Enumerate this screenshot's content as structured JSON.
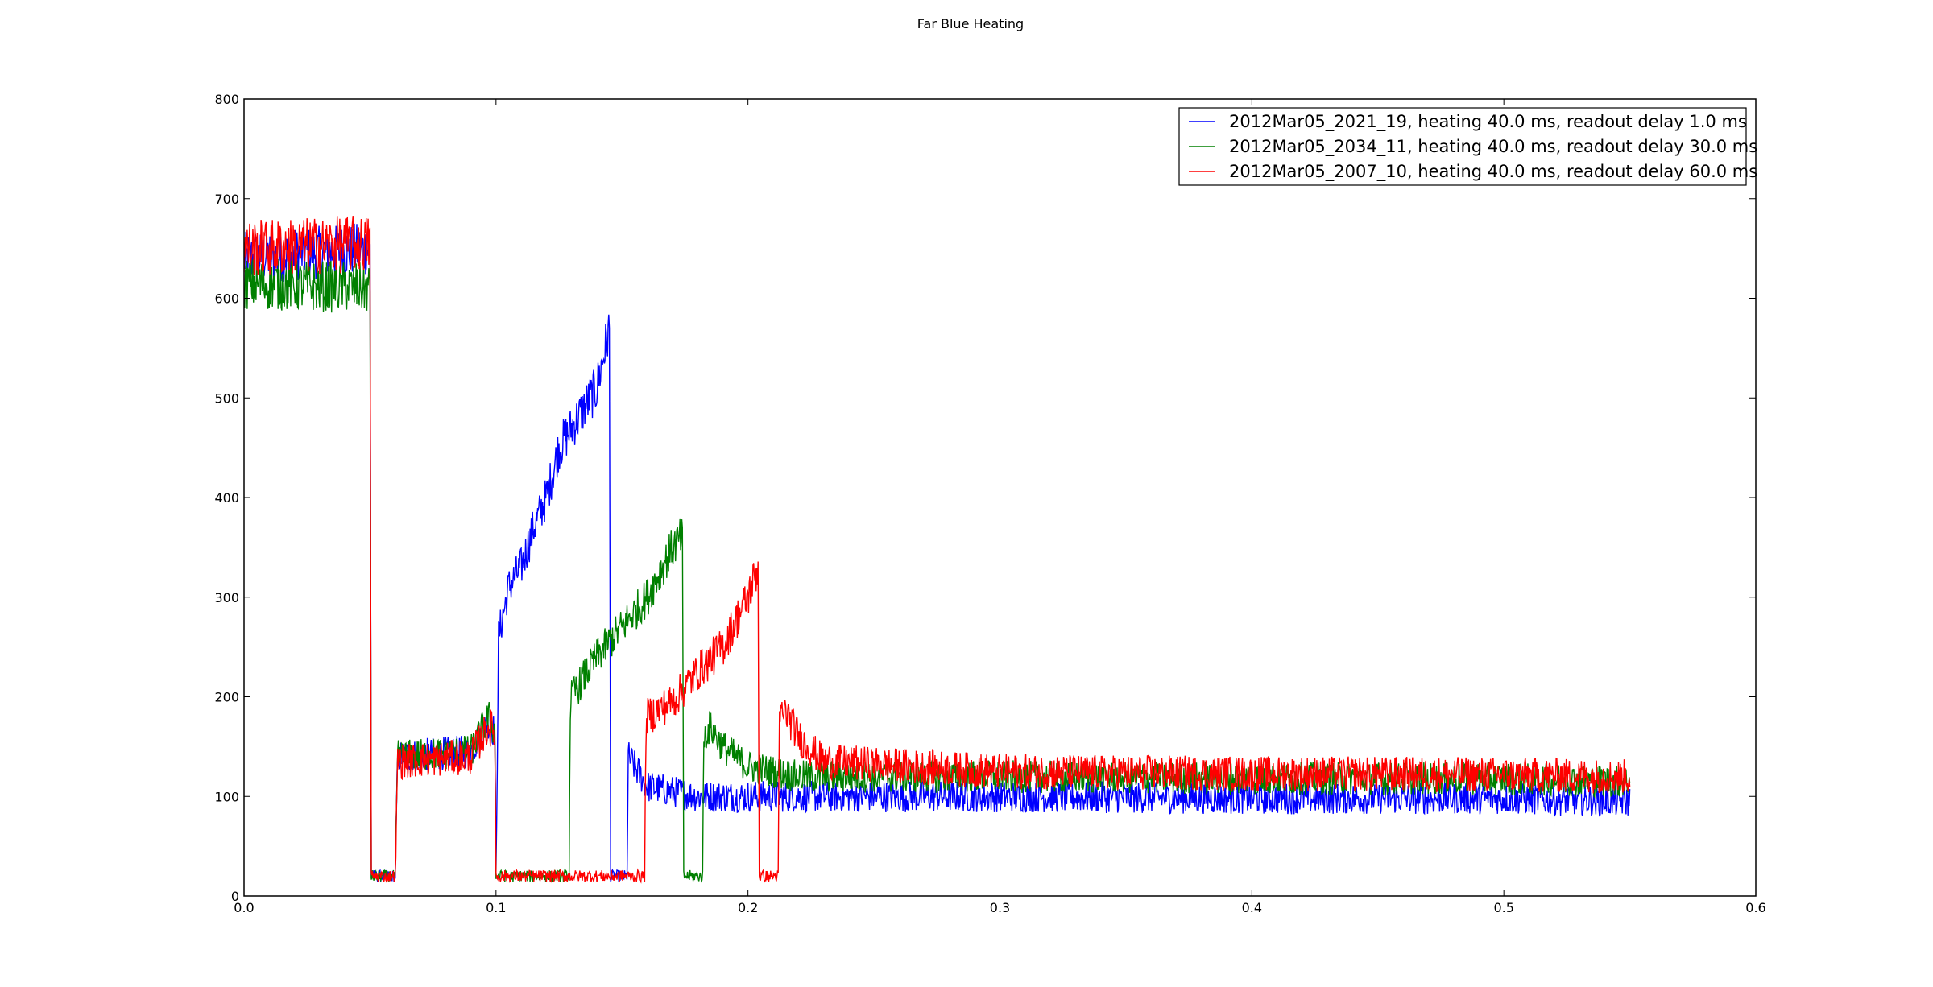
{
  "chart_data": {
    "type": "line",
    "title": "Far Blue Heating",
    "xlabel": "",
    "ylabel": "",
    "xlim": [
      0.0,
      0.6
    ],
    "ylim": [
      0,
      800
    ],
    "xticks": [
      0.0,
      0.1,
      0.2,
      0.3,
      0.4,
      0.5,
      0.6
    ],
    "xtick_labels": [
      "0.0",
      "0.1",
      "0.2",
      "0.3",
      "0.4",
      "0.5",
      "0.6"
    ],
    "yticks": [
      0,
      100,
      200,
      300,
      400,
      500,
      600,
      700,
      800
    ],
    "ytick_labels": [
      "0",
      "100",
      "200",
      "300",
      "400",
      "500",
      "600",
      "700",
      "800"
    ],
    "grid": false,
    "legend_position": "top-right",
    "series": [
      {
        "name": "2012Mar05_2021_19, heating 40.0 ms, readout delay 1.0 ms",
        "color": "#0000ff",
        "x": [
          0.0,
          0.05,
          0.0505,
          0.06,
          0.061,
          0.09,
          0.097,
          0.0995,
          0.1,
          0.101,
          0.105,
          0.11,
          0.115,
          0.12,
          0.125,
          0.13,
          0.135,
          0.14,
          0.145,
          0.1455,
          0.152,
          0.1525,
          0.155,
          0.16,
          0.17,
          0.18,
          0.2,
          0.3,
          0.4,
          0.5,
          0.55
        ],
        "y": [
          640,
          650,
          20,
          20,
          140,
          145,
          175,
          165,
          20,
          260,
          310,
          330,
          370,
          400,
          450,
          470,
          490,
          510,
          570,
          20,
          20,
          140,
          130,
          110,
          105,
          100,
          100,
          100,
          98,
          98,
          95
        ],
        "noise": 28
      },
      {
        "name": "2012Mar05_2034_11, heating 40.0 ms, readout delay 30.0 ms",
        "color": "#008000",
        "x": [
          0.0,
          0.05,
          0.0505,
          0.06,
          0.061,
          0.09,
          0.097,
          0.0995,
          0.1,
          0.129,
          0.1295,
          0.13,
          0.14,
          0.15,
          0.16,
          0.17,
          0.174,
          0.1745,
          0.182,
          0.1825,
          0.185,
          0.19,
          0.2,
          0.22,
          0.3,
          0.4,
          0.5,
          0.55
        ],
        "y": [
          615,
          610,
          20,
          20,
          140,
          145,
          180,
          165,
          20,
          20,
          190,
          200,
          240,
          270,
          300,
          350,
          360,
          20,
          20,
          160,
          170,
          150,
          130,
          120,
          120,
          118,
          118,
          115
        ],
        "noise": 28
      },
      {
        "name": "2012Mar05_2007_10, heating 40.0 ms, readout delay 60.0 ms",
        "color": "#ff0000",
        "x": [
          0.0,
          0.05,
          0.0505,
          0.06,
          0.061,
          0.09,
          0.097,
          0.0995,
          0.1,
          0.159,
          0.1595,
          0.16,
          0.17,
          0.18,
          0.19,
          0.2,
          0.204,
          0.2045,
          0.212,
          0.2125,
          0.215,
          0.22,
          0.23,
          0.3,
          0.4,
          0.5,
          0.55
        ],
        "y": [
          650,
          655,
          20,
          20,
          135,
          140,
          170,
          165,
          20,
          20,
          165,
          180,
          195,
          225,
          250,
          300,
          330,
          20,
          20,
          180,
          185,
          160,
          135,
          125,
          123,
          122,
          120
        ],
        "noise": 30
      }
    ]
  }
}
